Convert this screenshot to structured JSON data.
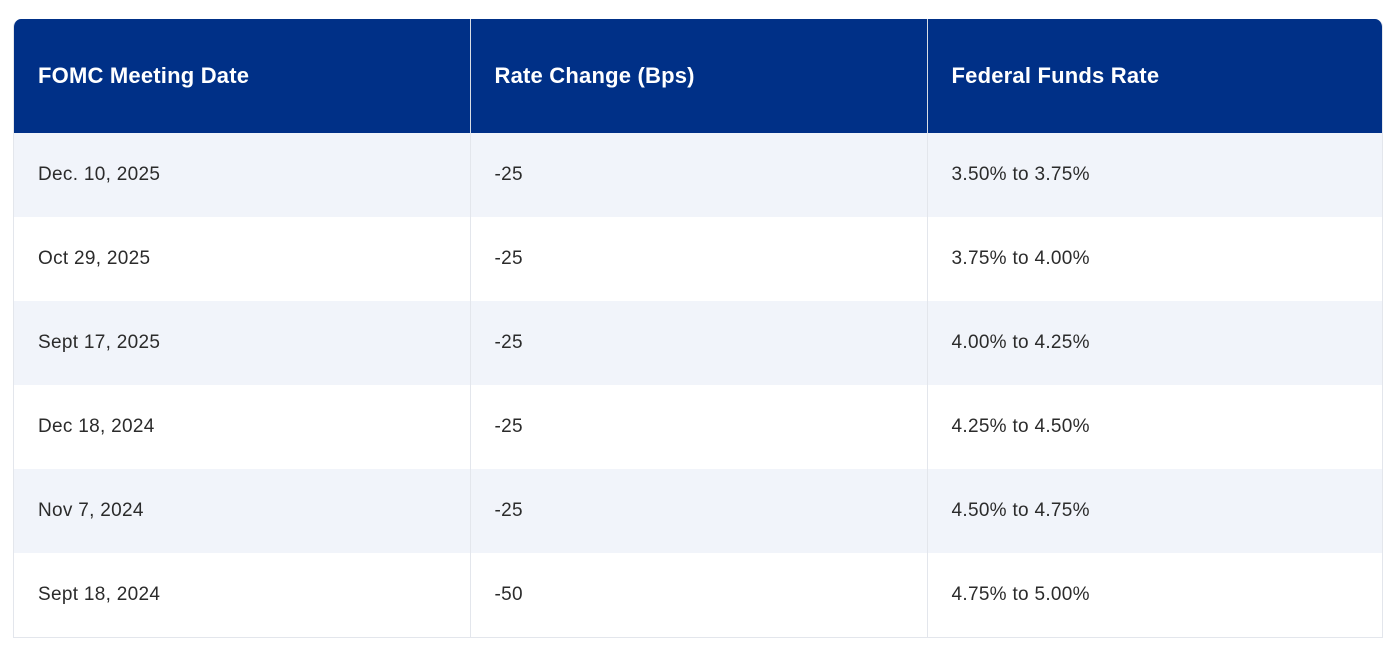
{
  "table": {
    "headers": [
      "FOMC Meeting Date",
      "Rate Change (Bps)",
      "Federal Funds Rate"
    ],
    "rows": [
      [
        "Dec. 10, 2025",
        "-25",
        "3.50% to 3.75%"
      ],
      [
        "Oct 29, 2025",
        "-25",
        "3.75% to 4.00%"
      ],
      [
        "Sept 17, 2025",
        "-25",
        "4.00% to 4.25%"
      ],
      [
        "Dec 18, 2024",
        "-25",
        "4.25% to 4.50%"
      ],
      [
        "Nov 7, 2024",
        "-25",
        "4.50% to 4.75%"
      ],
      [
        "Sept 18, 2024",
        "-50",
        "4.75% to 5.00%"
      ]
    ]
  },
  "colors": {
    "header_bg": "#003087",
    "header_text": "#ffffff",
    "stripe_bg": "#f1f4fa",
    "row_bg": "#ffffff",
    "body_text": "#2b2b2b"
  }
}
